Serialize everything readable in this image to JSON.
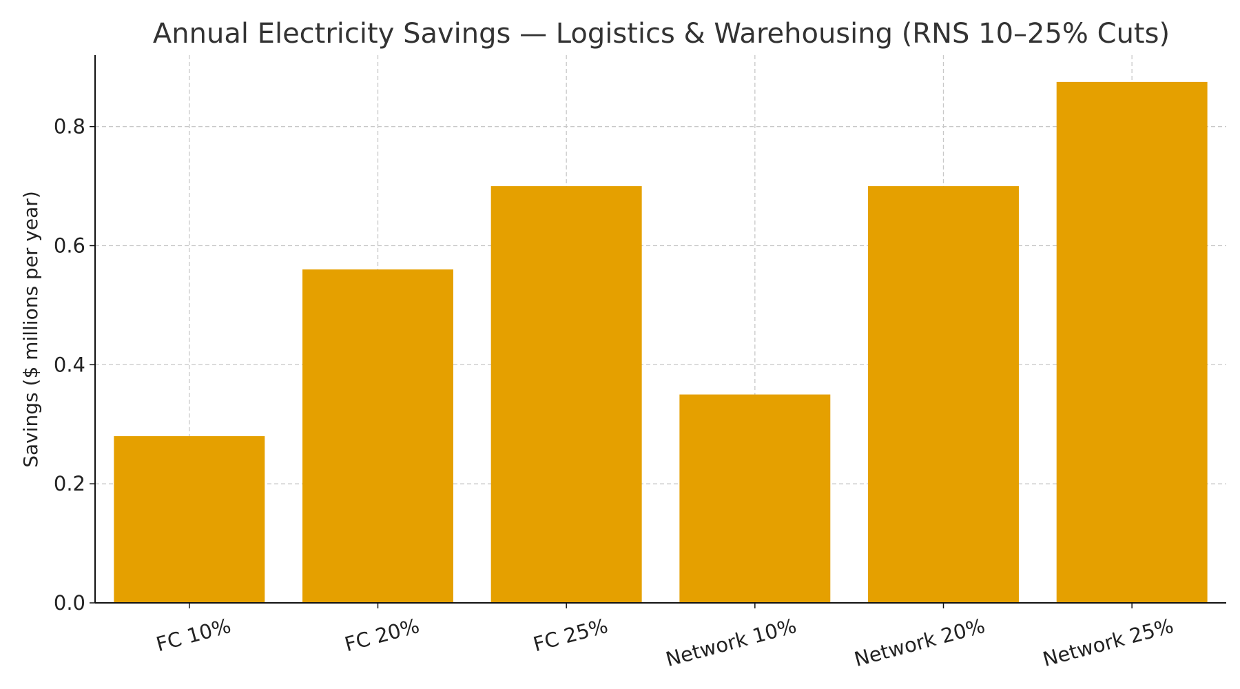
{
  "chart_data": {
    "type": "bar",
    "title": "Annual Electricity Savings — Logistics & Warehousing (RNS 10–25% Cuts)",
    "xlabel": "",
    "ylabel": "Savings ($ millions per year)",
    "categories": [
      "FC 10%",
      "FC 20%",
      "FC 25%",
      "Network 10%",
      "Network 20%",
      "Network 25%"
    ],
    "values": [
      0.28,
      0.56,
      0.7,
      0.35,
      0.7,
      0.875
    ],
    "ylim": [
      0,
      0.92
    ],
    "yticks": [
      0.0,
      0.2,
      0.4,
      0.6,
      0.8
    ],
    "ytick_labels": [
      "0.0",
      "0.2",
      "0.4",
      "0.6",
      "0.8"
    ],
    "grid": true,
    "bar_color": "#E5A000"
  }
}
